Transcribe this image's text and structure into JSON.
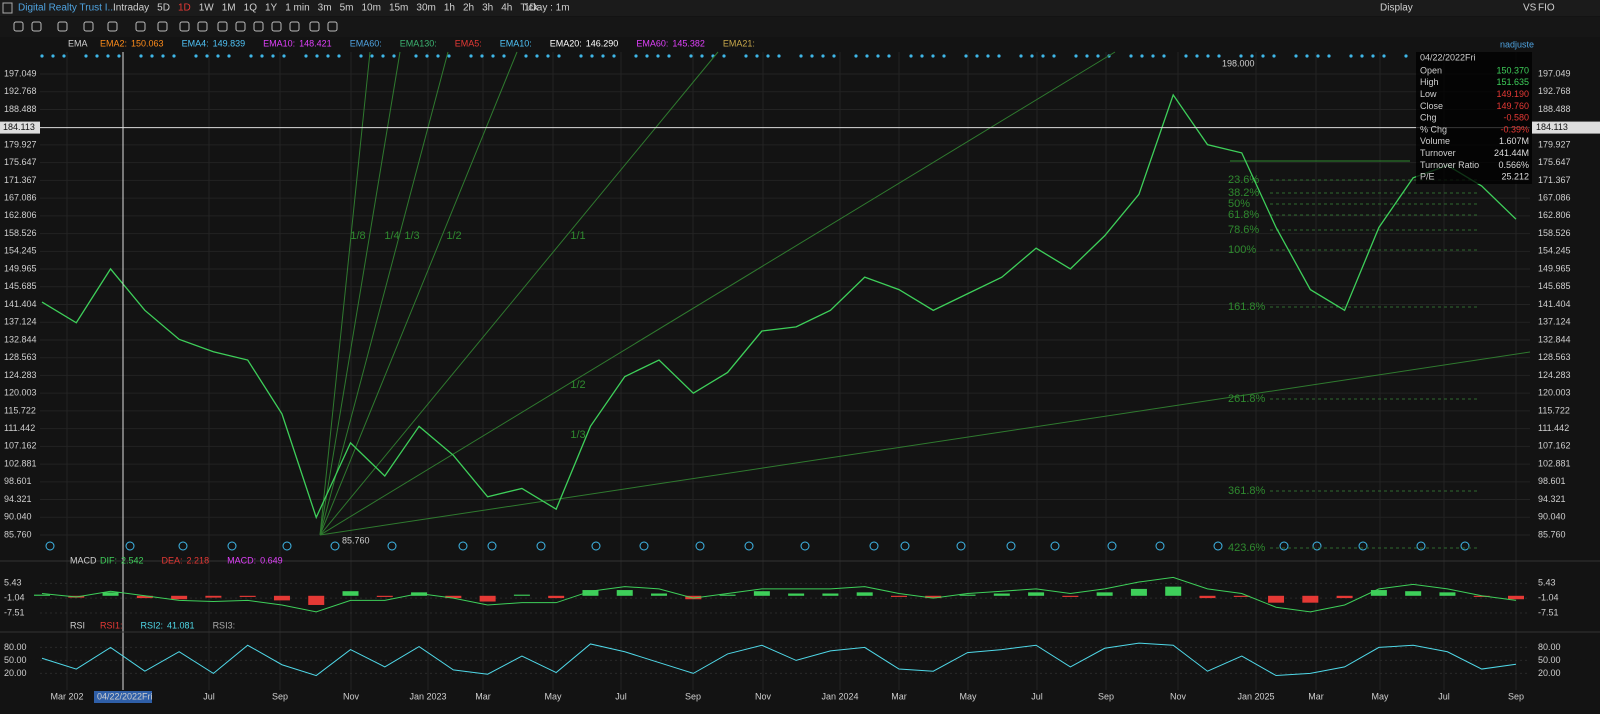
{
  "toolbar": {
    "symbol": "Digital Realty Trust I...",
    "intervals": [
      "Intraday",
      "5D",
      "1D",
      "1W",
      "1M",
      "1Q",
      "1Y",
      "1 min",
      "3m",
      "5m",
      "10m",
      "15m",
      "30m",
      "1h",
      "2h",
      "3h",
      "4h",
      "Tick"
    ],
    "range": "1Day : 1m",
    "display": "Display",
    "compare": "VS",
    "code": "FIO"
  },
  "main": {
    "indicator": "EMA",
    "adjust": "nadjuste",
    "legend": [
      {
        "name": "EMA2:",
        "value": "150.063",
        "color": "#ff8c1a"
      },
      {
        "name": "EMA4:",
        "value": "149.839",
        "color": "#4fc3f7"
      },
      {
        "name": "EMA10:",
        "value": "148.421",
        "color": "#e040fb"
      },
      {
        "name": "EMA60:",
        "color": "#4fa3e0"
      },
      {
        "name": "EMA130:",
        "color": "#3cb371"
      },
      {
        "name": "EMA5:",
        "color": "#e53935"
      },
      {
        "name": "EMA10:",
        "color": "#4fc3f7"
      },
      {
        "name": "EMA20:",
        "value": "146.290",
        "color": "#ffffff"
      },
      {
        "name": "EMA60:",
        "value": "145.382",
        "color": "#e040fb"
      },
      {
        "name": "EMA21:",
        "color": "#c8a84b"
      }
    ],
    "ylim": [
      81.66,
      202.36
    ],
    "yticks": [
      197.049,
      192.768,
      188.488,
      179.927,
      175.647,
      171.367,
      167.086,
      162.806,
      158.526,
      154.245,
      149.965,
      145.685,
      141.404,
      137.124,
      132.844,
      128.563,
      124.283,
      {
        "value": 120.003,
        "label": "120.003"
      },
      115.722,
      111.442,
      107.162,
      102.881,
      98.601,
      94.321,
      {
        "value": 90.04,
        "label": "90.040"
      },
      {
        "value": 85.76,
        "label": "85.760"
      }
    ],
    "crosshair": {
      "value": 184.113,
      "label": "184.113"
    },
    "xticks": [
      "Mar 202",
      "Jul",
      "Sep",
      "Nov",
      "Jan 2023",
      "Mar",
      "May",
      "Jul",
      "Sep",
      "Nov",
      "Jan 2024",
      "Mar",
      "May",
      "Jul",
      "Sep",
      "Nov",
      "Jan 2025",
      "Mar",
      "May",
      "Jul",
      "Sep"
    ],
    "close": [
      142,
      137,
      150,
      140,
      133,
      130,
      128,
      115,
      90,
      108,
      100,
      112,
      105,
      95,
      97,
      92,
      112,
      124,
      128,
      120,
      125,
      135,
      136,
      140,
      148,
      145,
      140,
      144,
      148,
      155,
      150,
      158,
      168,
      192,
      180,
      178,
      160,
      145,
      140,
      160,
      172,
      175,
      170,
      162
    ],
    "close_color": "#3ecf5a",
    "high_label": "198.000",
    "low_label": "85.760",
    "fib_levels": [
      "23.6%",
      "38.2%",
      "50%",
      "61.8%",
      "78.6%",
      "100%",
      "161.8%",
      "261.8%",
      "361.8%",
      "423.6%"
    ],
    "fan_labels": [
      "1/8",
      "1/4",
      "1/3",
      "1/2",
      "1/1",
      "1/2",
      "1/3"
    ],
    "info": {
      "date": "04/22/2022Fri",
      "rows": [
        {
          "label": "Open",
          "value": "150.370",
          "color": "#3ecf5a"
        },
        {
          "label": "High",
          "value": "151.635",
          "color": "#3ecf5a"
        },
        {
          "label": "Low",
          "value": "149.190",
          "color": "#e53935"
        },
        {
          "label": "Close",
          "value": "149.760",
          "color": "#e53935"
        },
        {
          "label": "Chg",
          "value": "-0.580",
          "color": "#e53935"
        },
        {
          "label": "% Chg",
          "value": "-0.39%",
          "color": "#e53935"
        },
        {
          "label": "Volume",
          "value": "1.607M",
          "color": "#dddddd"
        },
        {
          "label": "Turnover",
          "value": "241.44M",
          "color": "#dddddd"
        },
        {
          "label": "Turnover Ratio",
          "value": "0.566%",
          "color": "#dddddd"
        },
        {
          "label": "P/E",
          "value": "25.212",
          "color": "#dddddd"
        }
      ]
    }
  },
  "macd": {
    "name": "MACD",
    "legend": [
      {
        "name": "DIF:",
        "value": "2.542",
        "color": "#3ecf5a"
      },
      {
        "name": "DEA:",
        "value": "2.218",
        "color": "#e53935"
      },
      {
        "name": "MACD:",
        "value": "0.649",
        "color": "#e040fb"
      }
    ],
    "ylim": [
      -10.55,
      13.42
    ],
    "yticks": [
      5.43,
      -1.04,
      -7.51
    ],
    "histogram": [
      0.5,
      -0.8,
      1.5,
      -1,
      -1.5,
      -0.8,
      -0.5,
      -2,
      -4,
      2,
      -0.5,
      1.5,
      -1,
      -2.5,
      0.5,
      -1,
      2.5,
      2.5,
      1,
      -1.5,
      0.5,
      2,
      1,
      1,
      1.5,
      -0.5,
      -1,
      0.5,
      1,
      1.5,
      -0.5,
      1.5,
      3,
      4,
      -1,
      -0.5,
      -3,
      -3,
      -1,
      2.5,
      2,
      1.5,
      -0.5,
      -1.5
    ],
    "dif": [
      1,
      -0.5,
      2,
      0,
      -2,
      -2.5,
      -2,
      -4,
      -7,
      -2,
      -2,
      1,
      -1,
      -4,
      -3,
      -3,
      2,
      4,
      3,
      -1,
      1,
      3,
      3,
      3,
      4,
      1,
      -1,
      1,
      2,
      3,
      1,
      3,
      6,
      8,
      3,
      1,
      -5,
      -7,
      -4,
      3,
      5,
      3,
      0,
      -2
    ]
  },
  "rsi": {
    "name": "RSI",
    "legend": [
      {
        "name": "RSI1:",
        "color": "#e53935"
      },
      {
        "name": "RSI2:",
        "value": "41.081",
        "color": "#4fd8e8"
      },
      {
        "name": "RSI3:",
        "color": "#aaaaaa"
      }
    ],
    "ylim": [
      -18.4,
      106.4
    ],
    "yticks": [
      {
        "value": 80,
        "label": "80.00"
      },
      {
        "value": 50,
        "label": "50.00"
      },
      {
        "value": 20,
        "label": "20.00"
      }
    ],
    "values": [
      55,
      30,
      80,
      25,
      70,
      20,
      85,
      40,
      15,
      75,
      35,
      82,
      28,
      18,
      60,
      22,
      88,
      70,
      45,
      20,
      65,
      85,
      50,
      72,
      80,
      30,
      25,
      68,
      75,
      85,
      35,
      78,
      90,
      85,
      25,
      60,
      15,
      20,
      35,
      80,
      85,
      70,
      30,
      41
    ]
  }
}
